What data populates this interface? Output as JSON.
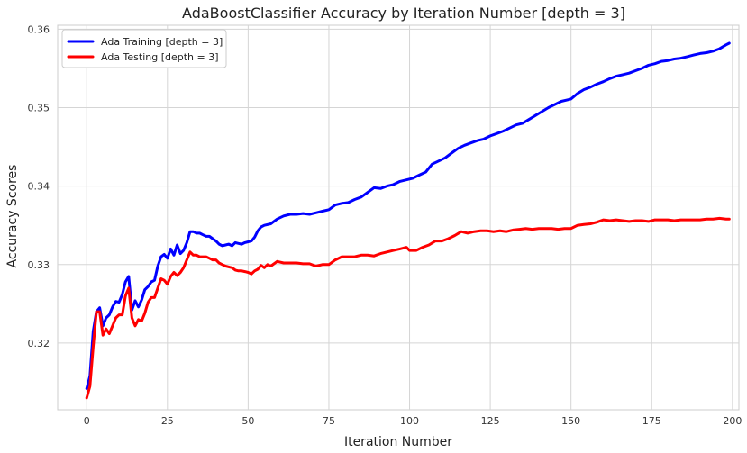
{
  "chart_data": {
    "type": "line",
    "title": "AdaBoostClassifier Accuracy by Iteration Number [depth = 3]",
    "xlabel": "Iteration Number",
    "ylabel": "Accuracy Scores",
    "xlim": [
      -9,
      202
    ],
    "ylim": [
      0.3115,
      0.3605
    ],
    "xticks": [
      0,
      25,
      50,
      75,
      100,
      125,
      150,
      175,
      200
    ],
    "yticks": [
      0.32,
      0.33,
      0.34,
      0.35,
      0.36
    ],
    "ytick_labels": [
      "0.32",
      "0.33",
      "0.34",
      "0.35",
      "0.36"
    ],
    "grid": true,
    "legend_position": "top-left",
    "series": [
      {
        "name": "Ada Training [depth = 3]",
        "color": "#0000ff",
        "points": [
          [
            0,
            0.3142
          ],
          [
            1,
            0.3158
          ],
          [
            2,
            0.3215
          ],
          [
            3,
            0.324
          ],
          [
            4,
            0.3245
          ],
          [
            5,
            0.3222
          ],
          [
            6,
            0.3232
          ],
          [
            7,
            0.3236
          ],
          [
            8,
            0.3246
          ],
          [
            9,
            0.3253
          ],
          [
            10,
            0.3252
          ],
          [
            11,
            0.3262
          ],
          [
            12,
            0.3278
          ],
          [
            13,
            0.3285
          ],
          [
            14,
            0.3242
          ],
          [
            15,
            0.3254
          ],
          [
            16,
            0.3246
          ],
          [
            17,
            0.3255
          ],
          [
            18,
            0.3268
          ],
          [
            19,
            0.3272
          ],
          [
            20,
            0.3278
          ],
          [
            21,
            0.328
          ],
          [
            22,
            0.3298
          ],
          [
            23,
            0.331
          ],
          [
            24,
            0.3313
          ],
          [
            25,
            0.3308
          ],
          [
            26,
            0.332
          ],
          [
            27,
            0.3312
          ],
          [
            28,
            0.3325
          ],
          [
            29,
            0.3314
          ],
          [
            30,
            0.3318
          ],
          [
            31,
            0.3328
          ],
          [
            32,
            0.3342
          ],
          [
            33,
            0.3342
          ],
          [
            34,
            0.334
          ],
          [
            35,
            0.334
          ],
          [
            36,
            0.3338
          ],
          [
            37,
            0.3336
          ],
          [
            38,
            0.3336
          ],
          [
            39,
            0.3333
          ],
          [
            40,
            0.333
          ],
          [
            41,
            0.3326
          ],
          [
            42,
            0.3324
          ],
          [
            43,
            0.3325
          ],
          [
            44,
            0.3326
          ],
          [
            45,
            0.3324
          ],
          [
            46,
            0.3328
          ],
          [
            47,
            0.3327
          ],
          [
            48,
            0.3326
          ],
          [
            49,
            0.3328
          ],
          [
            50,
            0.3329
          ],
          [
            51,
            0.333
          ],
          [
            52,
            0.3335
          ],
          [
            53,
            0.3343
          ],
          [
            54,
            0.3348
          ],
          [
            55,
            0.335
          ],
          [
            57,
            0.3352
          ],
          [
            59,
            0.3358
          ],
          [
            61,
            0.3362
          ],
          [
            63,
            0.3364
          ],
          [
            65,
            0.3364
          ],
          [
            67,
            0.3365
          ],
          [
            69,
            0.3364
          ],
          [
            71,
            0.3366
          ],
          [
            73,
            0.3368
          ],
          [
            75,
            0.337
          ],
          [
            77,
            0.3376
          ],
          [
            79,
            0.3378
          ],
          [
            81,
            0.3379
          ],
          [
            83,
            0.3383
          ],
          [
            85,
            0.3386
          ],
          [
            87,
            0.3392
          ],
          [
            89,
            0.3398
          ],
          [
            91,
            0.3397
          ],
          [
            93,
            0.34
          ],
          [
            95,
            0.3402
          ],
          [
            97,
            0.3406
          ],
          [
            99,
            0.3408
          ],
          [
            101,
            0.341
          ],
          [
            103,
            0.3414
          ],
          [
            105,
            0.3418
          ],
          [
            107,
            0.3428
          ],
          [
            109,
            0.3432
          ],
          [
            111,
            0.3436
          ],
          [
            113,
            0.3442
          ],
          [
            115,
            0.3448
          ],
          [
            117,
            0.3452
          ],
          [
            119,
            0.3455
          ],
          [
            121,
            0.3458
          ],
          [
            123,
            0.346
          ],
          [
            125,
            0.3464
          ],
          [
            127,
            0.3467
          ],
          [
            129,
            0.347
          ],
          [
            131,
            0.3474
          ],
          [
            133,
            0.3478
          ],
          [
            135,
            0.348
          ],
          [
            137,
            0.3485
          ],
          [
            139,
            0.349
          ],
          [
            141,
            0.3495
          ],
          [
            143,
            0.35
          ],
          [
            145,
            0.3504
          ],
          [
            147,
            0.3508
          ],
          [
            149,
            0.351
          ],
          [
            150,
            0.3511
          ],
          [
            152,
            0.3518
          ],
          [
            154,
            0.3523
          ],
          [
            156,
            0.3526
          ],
          [
            158,
            0.353
          ],
          [
            160,
            0.3533
          ],
          [
            162,
            0.3537
          ],
          [
            164,
            0.354
          ],
          [
            166,
            0.3542
          ],
          [
            168,
            0.3544
          ],
          [
            170,
            0.3547
          ],
          [
            172,
            0.355
          ],
          [
            174,
            0.3554
          ],
          [
            176,
            0.3556
          ],
          [
            178,
            0.3559
          ],
          [
            180,
            0.356
          ],
          [
            182,
            0.3562
          ],
          [
            184,
            0.3563
          ],
          [
            186,
            0.3565
          ],
          [
            188,
            0.3567
          ],
          [
            190,
            0.3569
          ],
          [
            192,
            0.357
          ],
          [
            194,
            0.3572
          ],
          [
            196,
            0.3575
          ],
          [
            198,
            0.358
          ],
          [
            199,
            0.3582
          ]
        ]
      },
      {
        "name": "Ada Testing [depth = 3]",
        "color": "#ff0000",
        "points": [
          [
            0,
            0.313
          ],
          [
            1,
            0.3145
          ],
          [
            2,
            0.3195
          ],
          [
            3,
            0.324
          ],
          [
            4,
            0.324
          ],
          [
            5,
            0.321
          ],
          [
            6,
            0.3218
          ],
          [
            7,
            0.3212
          ],
          [
            8,
            0.3222
          ],
          [
            9,
            0.3232
          ],
          [
            10,
            0.3236
          ],
          [
            11,
            0.3236
          ],
          [
            12,
            0.326
          ],
          [
            13,
            0.327
          ],
          [
            14,
            0.3232
          ],
          [
            15,
            0.3222
          ],
          [
            16,
            0.323
          ],
          [
            17,
            0.3228
          ],
          [
            18,
            0.3238
          ],
          [
            19,
            0.3252
          ],
          [
            20,
            0.3258
          ],
          [
            21,
            0.3258
          ],
          [
            22,
            0.327
          ],
          [
            23,
            0.3282
          ],
          [
            24,
            0.328
          ],
          [
            25,
            0.3275
          ],
          [
            26,
            0.3285
          ],
          [
            27,
            0.329
          ],
          [
            28,
            0.3286
          ],
          [
            29,
            0.329
          ],
          [
            30,
            0.3296
          ],
          [
            31,
            0.3306
          ],
          [
            32,
            0.3316
          ],
          [
            33,
            0.3312
          ],
          [
            34,
            0.3312
          ],
          [
            35,
            0.331
          ],
          [
            36,
            0.331
          ],
          [
            37,
            0.331
          ],
          [
            38,
            0.3308
          ],
          [
            39,
            0.3306
          ],
          [
            40,
            0.3306
          ],
          [
            41,
            0.3302
          ],
          [
            42,
            0.33
          ],
          [
            43,
            0.3298
          ],
          [
            44,
            0.3297
          ],
          [
            45,
            0.3296
          ],
          [
            46,
            0.3293
          ],
          [
            47,
            0.3292
          ],
          [
            48,
            0.3292
          ],
          [
            49,
            0.3291
          ],
          [
            50,
            0.329
          ],
          [
            51,
            0.3288
          ],
          [
            52,
            0.3292
          ],
          [
            53,
            0.3294
          ],
          [
            54,
            0.3299
          ],
          [
            55,
            0.3296
          ],
          [
            56,
            0.33
          ],
          [
            57,
            0.3298
          ],
          [
            59,
            0.3304
          ],
          [
            61,
            0.3302
          ],
          [
            63,
            0.3302
          ],
          [
            65,
            0.3302
          ],
          [
            67,
            0.3301
          ],
          [
            69,
            0.3301
          ],
          [
            71,
            0.3298
          ],
          [
            73,
            0.33
          ],
          [
            75,
            0.33
          ],
          [
            77,
            0.3306
          ],
          [
            79,
            0.331
          ],
          [
            81,
            0.331
          ],
          [
            83,
            0.331
          ],
          [
            85,
            0.3312
          ],
          [
            87,
            0.3312
          ],
          [
            89,
            0.3311
          ],
          [
            91,
            0.3314
          ],
          [
            93,
            0.3316
          ],
          [
            95,
            0.3318
          ],
          [
            97,
            0.332
          ],
          [
            99,
            0.3322
          ],
          [
            100,
            0.3318
          ],
          [
            102,
            0.3318
          ],
          [
            104,
            0.3322
          ],
          [
            106,
            0.3325
          ],
          [
            108,
            0.333
          ],
          [
            110,
            0.333
          ],
          [
            112,
            0.3333
          ],
          [
            114,
            0.3337
          ],
          [
            116,
            0.3342
          ],
          [
            118,
            0.334
          ],
          [
            120,
            0.3342
          ],
          [
            122,
            0.3343
          ],
          [
            124,
            0.3343
          ],
          [
            126,
            0.3342
          ],
          [
            128,
            0.3343
          ],
          [
            130,
            0.3342
          ],
          [
            132,
            0.3344
          ],
          [
            134,
            0.3345
          ],
          [
            136,
            0.3346
          ],
          [
            138,
            0.3345
          ],
          [
            140,
            0.3346
          ],
          [
            142,
            0.3346
          ],
          [
            144,
            0.3346
          ],
          [
            146,
            0.3345
          ],
          [
            148,
            0.3346
          ],
          [
            150,
            0.3346
          ],
          [
            152,
            0.335
          ],
          [
            154,
            0.3351
          ],
          [
            156,
            0.3352
          ],
          [
            158,
            0.3354
          ],
          [
            160,
            0.3357
          ],
          [
            162,
            0.3356
          ],
          [
            164,
            0.3357
          ],
          [
            166,
            0.3356
          ],
          [
            168,
            0.3355
          ],
          [
            170,
            0.3356
          ],
          [
            172,
            0.3356
          ],
          [
            174,
            0.3355
          ],
          [
            176,
            0.3357
          ],
          [
            178,
            0.3357
          ],
          [
            180,
            0.3357
          ],
          [
            182,
            0.3356
          ],
          [
            184,
            0.3357
          ],
          [
            186,
            0.3357
          ],
          [
            188,
            0.3357
          ],
          [
            190,
            0.3357
          ],
          [
            192,
            0.3358
          ],
          [
            194,
            0.3358
          ],
          [
            196,
            0.3359
          ],
          [
            198,
            0.3358
          ],
          [
            199,
            0.3358
          ]
        ]
      }
    ]
  }
}
